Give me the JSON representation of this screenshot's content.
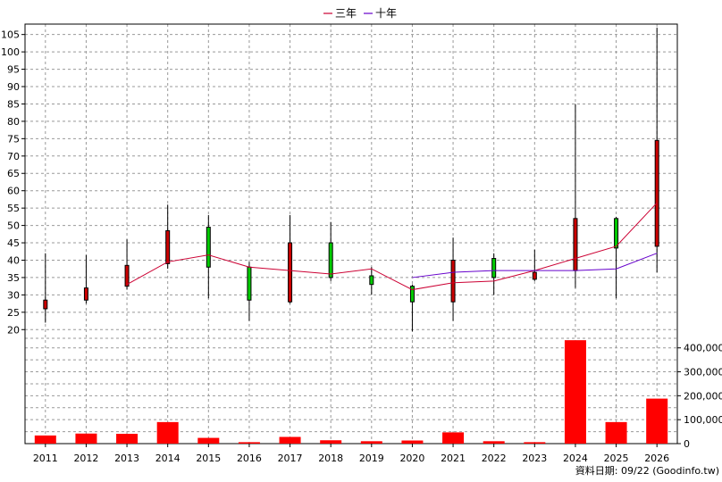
{
  "chart_data": {
    "type": "candlestick-with-volume",
    "title": "",
    "legend": [
      {
        "name": "三年",
        "color": "#cc0033"
      },
      {
        "name": "十年",
        "color": "#6600cc"
      }
    ],
    "categories": [
      "2011",
      "2012",
      "2013",
      "2014",
      "2015",
      "2016",
      "2017",
      "2018",
      "2019",
      "2020",
      "2021",
      "2022",
      "2023",
      "2024",
      "2025",
      "2026"
    ],
    "price_axis": {
      "ylim": [
        17.5,
        108
      ],
      "ticks": [
        20,
        25,
        30,
        35,
        40,
        45,
        50,
        55,
        60,
        65,
        70,
        75,
        80,
        85,
        90,
        95,
        100,
        105
      ]
    },
    "volume_axis": {
      "ylim": [
        0,
        440000
      ],
      "ticks": [
        0,
        100000,
        200000,
        300000,
        400000
      ],
      "tick_labels": [
        "0",
        "100,000",
        "200,000",
        "300,000",
        "400,000"
      ]
    },
    "candles": [
      {
        "year": "2011",
        "open": 28.5,
        "close": 26.0,
        "high": 42.0,
        "low": 22.0
      },
      {
        "year": "2012",
        "open": 32.0,
        "close": 28.5,
        "high": 41.5,
        "low": 27.5
      },
      {
        "year": "2013",
        "open": 38.5,
        "close": 32.5,
        "high": 46.0,
        "low": 31.5
      },
      {
        "year": "2014",
        "open": 48.5,
        "close": 39.0,
        "high": 56.0,
        "low": 37.5
      },
      {
        "year": "2015",
        "open": 38.0,
        "close": 49.5,
        "high": 53.0,
        "low": 29.0
      },
      {
        "year": "2016",
        "open": 28.5,
        "close": 38.0,
        "high": 39.5,
        "low": 22.5
      },
      {
        "year": "2017",
        "open": 45.0,
        "close": 28.0,
        "high": 53.0,
        "low": 27.5
      },
      {
        "year": "2018",
        "open": 35.0,
        "close": 45.0,
        "high": 51.0,
        "low": 34.0
      },
      {
        "year": "2019",
        "open": 33.0,
        "close": 35.5,
        "high": 38.0,
        "low": 30.0
      },
      {
        "year": "2020",
        "open": 28.0,
        "close": 32.5,
        "high": 33.0,
        "low": 19.5
      },
      {
        "year": "2021",
        "open": 40.0,
        "close": 28.0,
        "high": 46.5,
        "low": 22.5
      },
      {
        "year": "2022",
        "open": 35.0,
        "close": 40.5,
        "high": 42.0,
        "low": 30.0
      },
      {
        "year": "2023",
        "open": 36.5,
        "close": 34.5,
        "high": 43.0,
        "low": 34.0
      },
      {
        "year": "2024",
        "open": 52.0,
        "close": 37.0,
        "high": 85.0,
        "low": 32.0
      },
      {
        "year": "2025",
        "open": 43.5,
        "close": 52.0,
        "high": 52.5,
        "low": 29.0
      },
      {
        "year": "2026",
        "open": 74.5,
        "close": 44.0,
        "high": 107.0,
        "low": 36.5
      }
    ],
    "series": [
      {
        "name": "三年",
        "color": "#cc0033",
        "values": [
          null,
          null,
          33.0,
          39.5,
          41.5,
          38.0,
          37.0,
          36.0,
          37.5,
          31.5,
          33.5,
          34.0,
          37.0,
          40.5,
          44.0,
          56.5
        ]
      },
      {
        "name": "十年",
        "color": "#6600cc",
        "values": [
          null,
          null,
          null,
          null,
          null,
          null,
          null,
          null,
          null,
          35.0,
          36.5,
          37.0,
          37.0,
          37.0,
          37.5,
          42.0
        ]
      }
    ],
    "volume": [
      34000,
      42000,
      41000,
      90000,
      24000,
      6000,
      28000,
      14000,
      10000,
      13000,
      47000,
      10000,
      6000,
      432000,
      90000,
      188000
    ],
    "grid": true,
    "legend_position": "top-center"
  },
  "footer": {
    "text": "資料日期: 09/22  (Goodinfo.tw)"
  },
  "colors": {
    "up": "#00cc00",
    "down": "#cc0000",
    "volume": "#ff0000",
    "grid": "#999999"
  }
}
